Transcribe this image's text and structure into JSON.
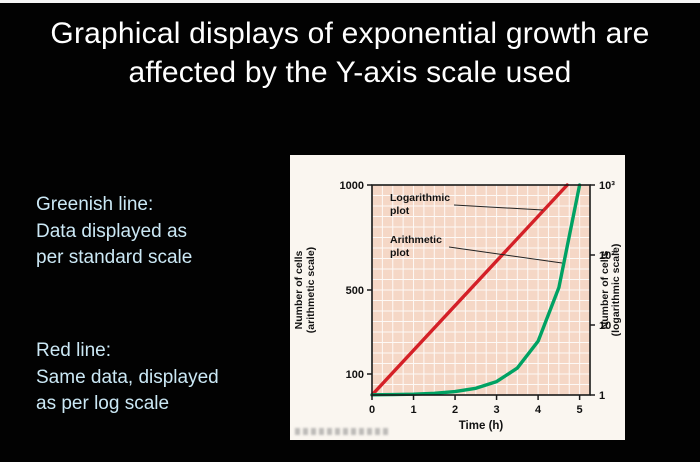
{
  "slide": {
    "title_line1": "Graphical displays of exponential growth are",
    "title_line2": "affected by the Y-axis scale used",
    "note_green": "Greenish line:\nData displayed as\nper standard scale",
    "note_red": "Red line:\nSame data, displayed\nas per log scale"
  },
  "chart_data": {
    "type": "line",
    "title": "",
    "x_axis": {
      "label": "Time (h)",
      "ticks": [
        0,
        1,
        2,
        3,
        4,
        5
      ],
      "range": [
        0,
        5.25
      ]
    },
    "left_axis": {
      "label": "Number of cells (arithmetic scale)",
      "ticks": [
        "1000",
        "500",
        "100"
      ],
      "tick_values": [
        1000,
        500,
        100
      ],
      "range": [
        0,
        1000
      ],
      "scale": "linear"
    },
    "right_axis": {
      "label": "Number of cells (logarithmic scale)",
      "ticks": [
        "10³",
        "10²",
        "10",
        "1"
      ],
      "tick_values": [
        1000,
        100,
        10,
        1
      ],
      "range": [
        1,
        1000
      ],
      "scale": "log"
    },
    "series": [
      {
        "name": "Logarithmic plot",
        "color": "#d42027",
        "axis": "right",
        "x": [
          0,
          4.7
        ],
        "values": [
          1,
          1000
        ]
      },
      {
        "name": "Arithmetic plot",
        "color": "#00a263",
        "axis": "left",
        "x": [
          0,
          0.5,
          1,
          1.5,
          2,
          2.5,
          3,
          3.5,
          4,
          4.5,
          5
        ],
        "values": [
          1,
          2,
          4,
          8,
          16,
          32,
          64,
          128,
          256,
          512,
          1000
        ]
      }
    ],
    "annotations": [
      {
        "text": "Logarithmic\nplot"
      },
      {
        "text": "Arithmetic\nplot"
      }
    ],
    "grid": true,
    "plot_bg": "#f5d7c6",
    "grid_color": "#ffffff",
    "frame_color": "#1a1a1a",
    "right_label_color": "#2f6f80"
  }
}
